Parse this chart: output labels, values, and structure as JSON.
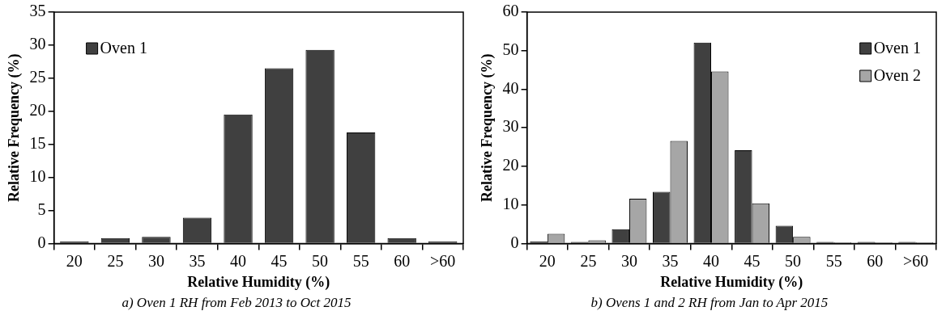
{
  "chart_data": [
    {
      "type": "bar",
      "xlabel": "Relative Humidity (%)",
      "ylabel": "Relative Frequency (%)",
      "categories": [
        "20",
        "25",
        "30",
        "35",
        "40",
        "45",
        "50",
        "55",
        "60",
        ">60"
      ],
      "series": [
        {
          "name": "Oven 1",
          "color": "#404040",
          "values": [
            0.3,
            0.8,
            1.0,
            3.9,
            19.5,
            26.5,
            29.3,
            16.8,
            0.8,
            0.3
          ]
        }
      ],
      "ylim": [
        0,
        35
      ],
      "yticks": [
        0,
        5,
        10,
        15,
        20,
        25,
        30,
        35
      ],
      "grid": false,
      "legend": "top left",
      "annotations": [
        "a) Oven 1 RH from Feb 2013 to Oct 2015"
      ]
    },
    {
      "type": "bar",
      "xlabel": "Relative Humidity (%)",
      "ylabel": "Relative Frequency (%)",
      "categories": [
        "20",
        "25",
        "30",
        "35",
        "40",
        "45",
        "50",
        "55",
        "60",
        ">60"
      ],
      "series": [
        {
          "name": "Oven 1",
          "color": "#404040",
          "values": [
            0.5,
            0.4,
            3.7,
            13.4,
            52.1,
            24.2,
            4.6,
            0.4,
            0.4,
            0.4
          ]
        },
        {
          "name": "Oven 2",
          "color": "#a6a6a6",
          "values": [
            2.5,
            0.8,
            11.6,
            26.6,
            44.6,
            10.4,
            1.7,
            0.3,
            0.3,
            0.3
          ]
        }
      ],
      "ylim": [
        0,
        60
      ],
      "yticks": [
        0,
        10,
        20,
        30,
        40,
        50,
        60
      ],
      "grid": false,
      "legend": "top right",
      "annotations": [
        "b) Ovens 1 and 2 RH from Jan to Apr 2015"
      ]
    }
  ]
}
